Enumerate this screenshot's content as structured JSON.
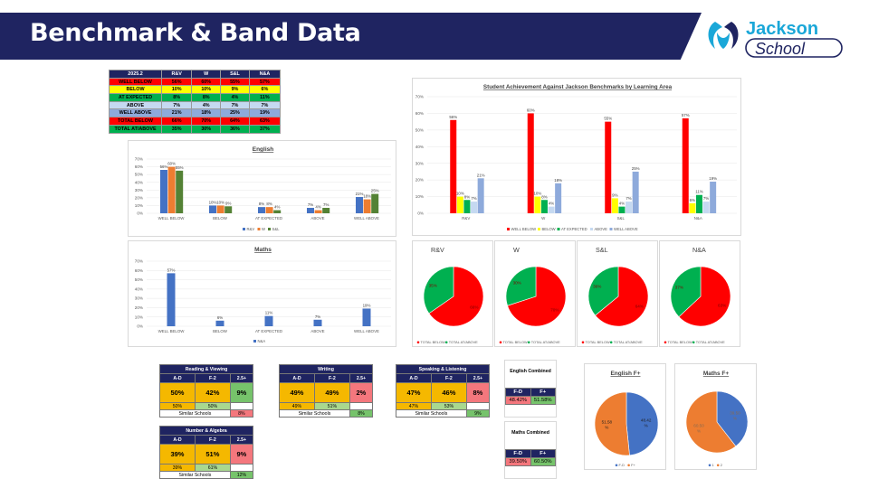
{
  "header": {
    "title": "Benchmark & Band Data"
  },
  "logo": {
    "line1": "Jackson",
    "line2": "School"
  },
  "summary_table": {
    "headers": [
      "2025.2",
      "R&V",
      "W",
      "S&L",
      "N&A"
    ],
    "rows": [
      {
        "label": "WELL BELOW",
        "values": [
          "56%",
          "60%",
          "55%",
          "57%"
        ],
        "color": "#ff0000"
      },
      {
        "label": "BELOW",
        "values": [
          "10%",
          "10%",
          "9%",
          "6%"
        ],
        "color": "#ffff00"
      },
      {
        "label": "AT EXPECTED",
        "values": [
          "8%",
          "8%",
          "4%",
          "11%"
        ],
        "color": "#00b050"
      },
      {
        "label": "ABOVE",
        "values": [
          "7%",
          "4%",
          "7%",
          "7%"
        ],
        "color": "#c5d9f1"
      },
      {
        "label": "WELL ABOVE",
        "values": [
          "21%",
          "18%",
          "25%",
          "19%"
        ],
        "color": "#8eaadb"
      },
      {
        "label": "TOTAL BELOW",
        "values": [
          "66%",
          "70%",
          "64%",
          "63%"
        ],
        "color": "#ff0000"
      },
      {
        "label": "TOTAL AT/ABOVE",
        "values": [
          "35%",
          "30%",
          "36%",
          "37%"
        ],
        "color": "#00b050"
      }
    ]
  },
  "chart_data": [
    {
      "id": "english",
      "type": "bar",
      "title": "English",
      "categories": [
        "WELL BELOW",
        "BELOW",
        "AT EXPECTED",
        "ABOVE",
        "WELL ABOVE"
      ],
      "series": [
        {
          "name": "R&V",
          "color": "#4472c4",
          "values": [
            56,
            10,
            8,
            7,
            21
          ],
          "labels": [
            "56%",
            "10%",
            "8%",
            "7%",
            "21%"
          ]
        },
        {
          "name": "W",
          "color": "#ed7d31",
          "values": [
            60,
            10,
            8,
            4,
            18
          ],
          "labels": [
            "60%",
            "10%",
            "8%",
            "4%",
            "18%"
          ]
        },
        {
          "name": "S&L",
          "color": "#548235",
          "values": [
            55,
            9,
            4,
            7,
            25
          ],
          "labels": [
            "55%",
            "9%",
            "4%",
            "7%",
            "25%"
          ]
        }
      ],
      "ylim": [
        0,
        70
      ],
      "yticks": [
        "0%",
        "10%",
        "20%",
        "30%",
        "40%",
        "50%",
        "60%",
        "70%"
      ]
    },
    {
      "id": "maths",
      "type": "bar",
      "title": "Maths",
      "categories": [
        "WELL BELOW",
        "BELOW",
        "AT EXPECTED",
        "ABOVE",
        "WELL ABOVE"
      ],
      "series": [
        {
          "name": "N&A",
          "color": "#4472c4",
          "values": [
            57,
            6,
            11,
            7,
            19
          ],
          "labels": [
            "57%",
            "6%",
            "11%",
            "7%",
            "19%"
          ]
        }
      ],
      "ylim": [
        0,
        70
      ],
      "yticks": [
        "0%",
        "10%",
        "20%",
        "30%",
        "40%",
        "50%",
        "60%",
        "70%"
      ]
    },
    {
      "id": "achievement",
      "type": "bar",
      "title": "Student Achievement Against Jackson Benchmarks by Learning Area",
      "categories": [
        "R&V",
        "W",
        "S&L",
        "N&A"
      ],
      "series": [
        {
          "name": "WELL BELOW",
          "color": "#ff0000",
          "values": [
            56,
            60,
            55,
            57
          ],
          "labels": [
            "56%",
            "60%",
            "55%",
            "57%"
          ]
        },
        {
          "name": "BELOW",
          "color": "#ffff00",
          "values": [
            10,
            10,
            9,
            6
          ],
          "labels": [
            "10%",
            "10%",
            "9%",
            "6%"
          ]
        },
        {
          "name": "AT EXPECTED",
          "color": "#00b050",
          "values": [
            8,
            8,
            4,
            11
          ],
          "labels": [
            "8%",
            "8%",
            "4%",
            "11%"
          ]
        },
        {
          "name": "ABOVE",
          "color": "#c5d9f1",
          "values": [
            7,
            4,
            7,
            7
          ],
          "labels": [
            "7%",
            "4%",
            "7%",
            "7%"
          ]
        },
        {
          "name": "WELL ABOVE",
          "color": "#8eaadb",
          "values": [
            21,
            18,
            25,
            19
          ],
          "labels": [
            "21%",
            "18%",
            "25%",
            "19%"
          ]
        }
      ],
      "ylim": [
        0,
        70
      ],
      "yticks": [
        "0%",
        "10%",
        "20%",
        "30%",
        "40%",
        "50%",
        "60%",
        "70%"
      ]
    },
    {
      "id": "pie-rv",
      "type": "pie",
      "title": "R&V",
      "slices": [
        {
          "name": "TOTAL BELOW",
          "value": 66,
          "color": "#ff0000",
          "label": "66%"
        },
        {
          "name": "TOTAL AT/ABOVE",
          "value": 35,
          "color": "#00b050",
          "label": "35%"
        }
      ]
    },
    {
      "id": "pie-w",
      "type": "pie",
      "title": "W",
      "slices": [
        {
          "name": "TOTAL BELOW",
          "value": 70,
          "color": "#ff0000",
          "label": "70%"
        },
        {
          "name": "TOTAL AT/ABOVE",
          "value": 30,
          "color": "#00b050",
          "label": "30%"
        }
      ]
    },
    {
      "id": "pie-sl",
      "type": "pie",
      "title": "S&L",
      "slices": [
        {
          "name": "TOTAL BELOW",
          "value": 64,
          "color": "#ff0000",
          "label": "64%"
        },
        {
          "name": "TOTAL AT/ABOVE",
          "value": 36,
          "color": "#00b050",
          "label": "36%"
        }
      ]
    },
    {
      "id": "pie-na",
      "type": "pie",
      "title": "N&A",
      "slices": [
        {
          "name": "TOTAL BELOW",
          "value": 63,
          "color": "#ff0000",
          "label": "63%"
        },
        {
          "name": "TOTAL AT/ABOVE",
          "value": 37,
          "color": "#00b050",
          "label": "37%"
        }
      ]
    },
    {
      "id": "pie-english-f",
      "type": "pie",
      "title": "English F+",
      "slices": [
        {
          "name": "F-D",
          "value": 48.42,
          "color": "#4472c4",
          "label": "48.42 %"
        },
        {
          "name": "F+",
          "value": 51.58,
          "color": "#ed7d31",
          "label": "51.58 %"
        }
      ]
    },
    {
      "id": "pie-maths-f",
      "type": "pie",
      "title": "Maths F+",
      "slices": [
        {
          "name": "1",
          "value": 39.5,
          "color": "#4472c4",
          "label": "39.50 %"
        },
        {
          "name": "2",
          "value": 60.5,
          "color": "#ed7d31",
          "label": "60.50 %"
        }
      ]
    }
  ],
  "band_tables": [
    {
      "id": "rv",
      "title": "Reading & Viewing",
      "cols": [
        "A-D",
        "F-2",
        "2.5+"
      ],
      "values": [
        "50%",
        "42%",
        "9%"
      ],
      "similar": [
        "50%",
        "50%",
        ""
      ],
      "similar_label": "Similar Schools",
      "similar_value": "8%"
    },
    {
      "id": "w",
      "title": "Writing",
      "cols": [
        "A-D",
        "F-2",
        "2.5+"
      ],
      "values": [
        "49%",
        "49%",
        "2%"
      ],
      "similar": [
        "49%",
        "51%",
        ""
      ],
      "similar_label": "Similar Schools",
      "similar_value": "8%"
    },
    {
      "id": "sl",
      "title": "Speaking & Listening",
      "cols": [
        "A-D",
        "F-2",
        "2.5+"
      ],
      "values": [
        "47%",
        "46%",
        "8%"
      ],
      "similar": [
        "47%",
        "53%",
        ""
      ],
      "similar_label": "Similar Schools",
      "similar_value": "9%"
    },
    {
      "id": "na",
      "title": "Number & Algebra",
      "cols": [
        "A-D",
        "F-2",
        "2.5+"
      ],
      "values": [
        "39%",
        "51%",
        "9%"
      ],
      "similar": [
        "39%",
        "61%",
        ""
      ],
      "similar_label": "Similar Schools",
      "similar_value": "12%"
    }
  ],
  "combined": [
    {
      "id": "english",
      "title": "English Combined",
      "cols": [
        "F-D",
        "F+"
      ],
      "values": [
        "48.42%",
        "51.58%"
      ]
    },
    {
      "id": "maths",
      "title": "Maths Combined",
      "cols": [
        "F-D",
        "F+"
      ],
      "values": [
        "39.50%",
        "60.50%"
      ]
    }
  ]
}
